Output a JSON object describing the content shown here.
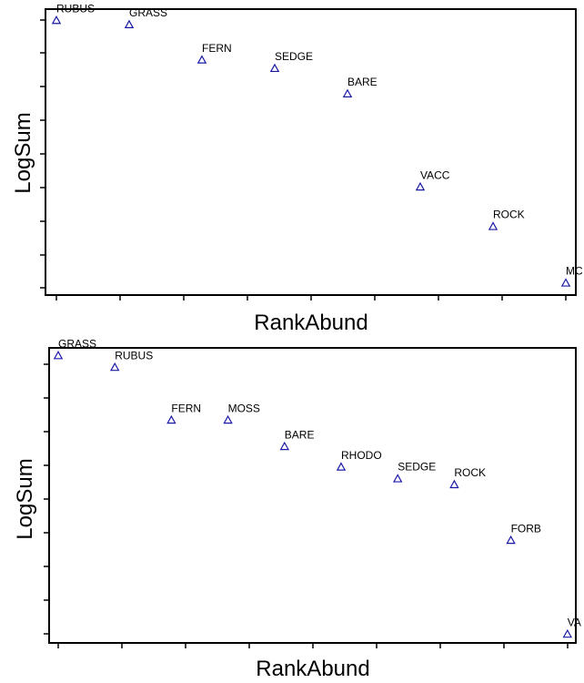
{
  "chart_data": [
    {
      "type": "scatter",
      "xlabel": "RankAbund",
      "ylabel": "LogSum",
      "marker": "triangle",
      "marker_color": "#1a1aa6",
      "x_range": [
        1,
        10
      ],
      "y_range": [
        0,
        1
      ],
      "grid": false,
      "points": [
        {
          "x": 1,
          "y": 0.96,
          "label": "RUBUS"
        },
        {
          "x": 2,
          "y": 0.945,
          "label": "GRASS"
        },
        {
          "x": 3,
          "y": 0.82,
          "label": "FERN"
        },
        {
          "x": 4,
          "y": 0.79,
          "label": "SEDGE"
        },
        {
          "x": 5,
          "y": 0.7,
          "label": "BARE"
        },
        {
          "x": 6,
          "y": 0.37,
          "label": "VACC"
        },
        {
          "x": 7,
          "y": 0.23,
          "label": "ROCK"
        },
        {
          "x": 8,
          "y": 0.03,
          "label": "MC"
        }
      ]
    },
    {
      "type": "scatter",
      "xlabel": "RankAbund",
      "ylabel": "LogSum",
      "marker": "triangle",
      "marker_color": "#1a1aa6",
      "x_range": [
        1,
        10
      ],
      "y_range": [
        0,
        1
      ],
      "grid": false,
      "points": [
        {
          "x": 1,
          "y": 0.98,
          "label": "GRASS"
        },
        {
          "x": 2,
          "y": 0.94,
          "label": "RUBUS"
        },
        {
          "x": 3,
          "y": 0.76,
          "label": "FERN"
        },
        {
          "x": 4,
          "y": 0.76,
          "label": "MOSS"
        },
        {
          "x": 5,
          "y": 0.67,
          "label": "BARE"
        },
        {
          "x": 6,
          "y": 0.6,
          "label": "RHODO"
        },
        {
          "x": 7,
          "y": 0.56,
          "label": "SEDGE"
        },
        {
          "x": 8,
          "y": 0.54,
          "label": "ROCK"
        },
        {
          "x": 9,
          "y": 0.35,
          "label": "FORB"
        },
        {
          "x": 10,
          "y": 0.03,
          "label": "VA"
        }
      ]
    }
  ]
}
